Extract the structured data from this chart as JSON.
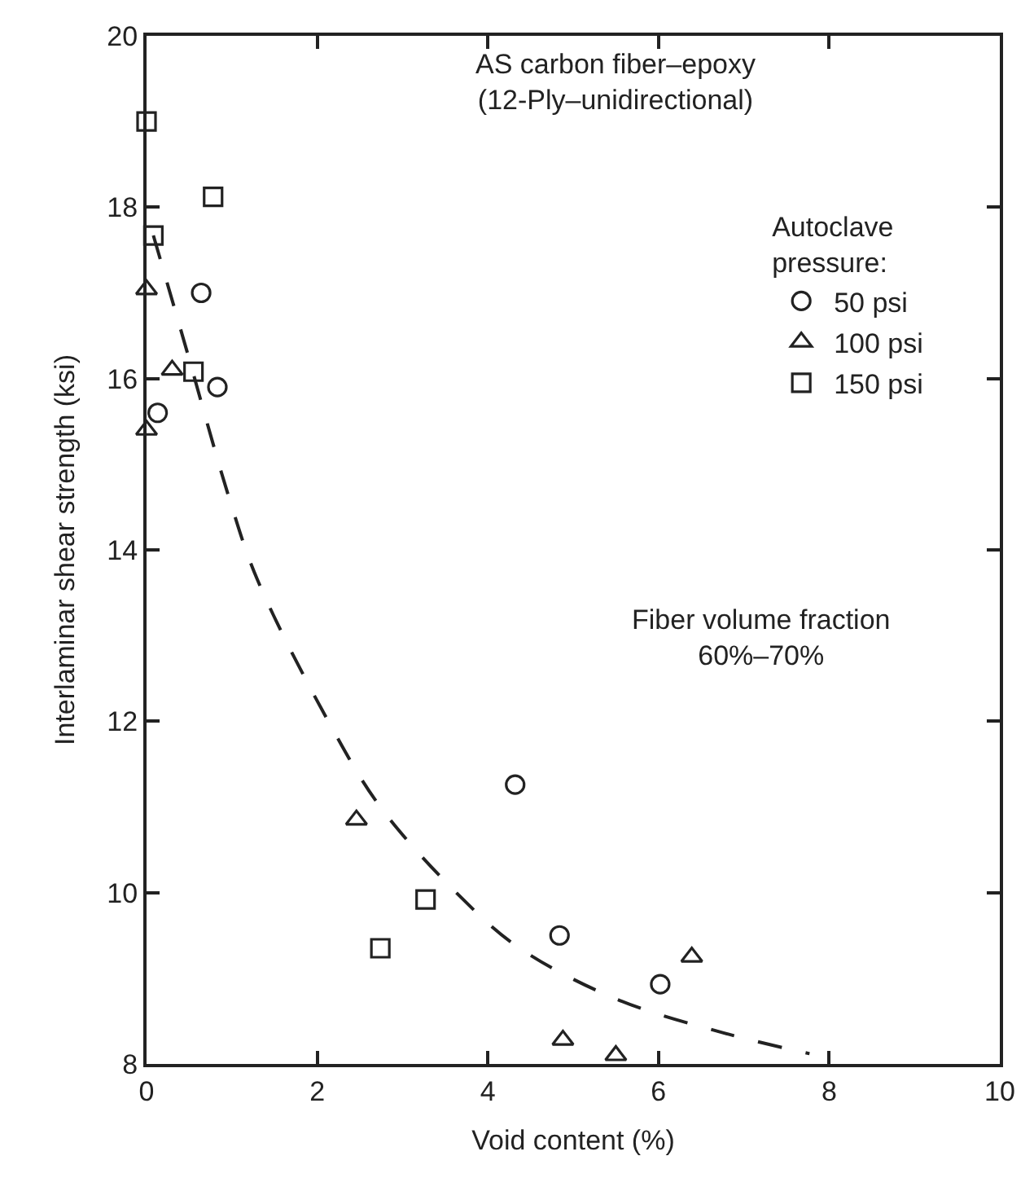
{
  "chart_data": {
    "type": "scatter",
    "xlabel": "Void content (%)",
    "ylabel": "Interlaminar shear strength (ksi)",
    "legend_title": "Autoclave pressure:",
    "legend": "top right",
    "xlim": [
      0,
      10
    ],
    "xticks": [
      0,
      2,
      4,
      6,
      8,
      10
    ],
    "ylim": [
      8,
      20
    ],
    "yticks": [
      8,
      10,
      12,
      14,
      16,
      18,
      20
    ],
    "annotations": [
      "AS carbon fiber–epoxy\n(12-Ply–unidirectional)",
      "Fiber volume fraction\n60%–70%"
    ],
    "series": [
      {
        "name": "50 psi",
        "color": "#222222",
        "marker": "circle",
        "x": [
          0.13,
          0.64,
          0.83,
          4.32,
          4.84,
          6.02
        ],
        "values": [
          15.6,
          17.0,
          15.9,
          11.26,
          9.5,
          8.93
        ]
      },
      {
        "name": "100 psi",
        "color": "#222222",
        "marker": "triangle",
        "x": [
          0,
          0,
          0.3,
          2.46,
          4.88,
          5.5,
          6.39
        ],
        "values": [
          17.04,
          15.4,
          16.1,
          10.85,
          8.28,
          8.1,
          9.25
        ]
      },
      {
        "name": "150 psi",
        "color": "#222222",
        "marker": "square",
        "x": [
          0,
          0.08,
          0.55,
          0.78,
          2.74,
          3.27
        ],
        "values": [
          19.0,
          17.67,
          16.08,
          18.12,
          9.35,
          9.92
        ]
      },
      {
        "type": "line",
        "color": "#222222",
        "marker": "none",
        "line_style": "dashed",
        "x": [
          0.08,
          0.45,
          0.97,
          1.3,
          2.13,
          2.74,
          3.67,
          4.36,
          5.5,
          6.77,
          7.77
        ],
        "values": [
          17.67,
          16.4,
          14.6,
          13.65,
          12.0,
          11.0,
          9.96,
          9.36,
          8.76,
          8.36,
          8.12
        ]
      }
    ]
  }
}
